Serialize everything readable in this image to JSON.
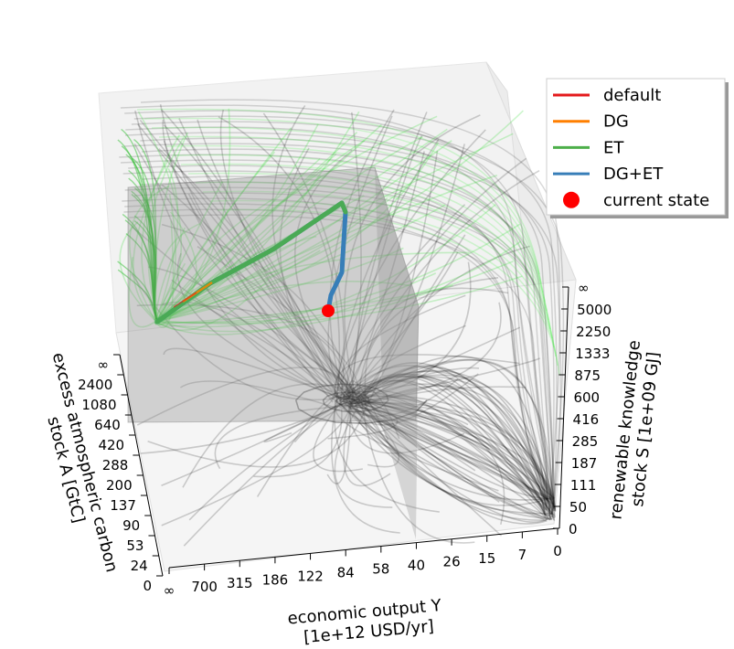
{
  "chart_data": {
    "type": "line",
    "projection": "3d",
    "axes": {
      "x": {
        "label_line1": "economic output Y",
        "label_line2": "[1e+12 USD/yr]",
        "ticks": [
          "∞",
          "700",
          "315",
          "186",
          "122",
          "84",
          "58",
          "40",
          "26",
          "15",
          "7",
          "0"
        ]
      },
      "y": {
        "label_line1": "renewable knowledge",
        "label_line2": "stock S [1e+09 GJ]",
        "ticks": [
          "0",
          "50",
          "111",
          "187",
          "285",
          "416",
          "600",
          "875",
          "1333",
          "2250",
          "5000",
          "∞"
        ]
      },
      "z": {
        "label_line1": "excess atmospheric carbon",
        "label_line2": "stock A [GtC]",
        "ticks": [
          "0",
          "24",
          "53",
          "90",
          "137",
          "200",
          "288",
          "420",
          "640",
          "1080",
          "2400",
          "∞"
        ]
      }
    },
    "legend": {
      "position": "top-right",
      "entries": [
        {
          "label": "default",
          "color": "#e41a1c",
          "marker": "line"
        },
        {
          "label": "DG",
          "color": "#ff7f00",
          "marker": "line"
        },
        {
          "label": "ET",
          "color": "#4daf4a",
          "marker": "line"
        },
        {
          "label": "DG+ET",
          "color": "#377eb8",
          "marker": "line"
        },
        {
          "label": "current state",
          "color": "#ff0000",
          "marker": "dot"
        }
      ]
    },
    "series": [
      {
        "name": "default",
        "color": "#e41a1c"
      },
      {
        "name": "DG",
        "color": "#ff7f00"
      },
      {
        "name": "ET",
        "color": "#4daf4a"
      },
      {
        "name": "DG+ET",
        "color": "#377eb8"
      },
      {
        "name": "current state",
        "color": "#ff0000"
      }
    ]
  }
}
